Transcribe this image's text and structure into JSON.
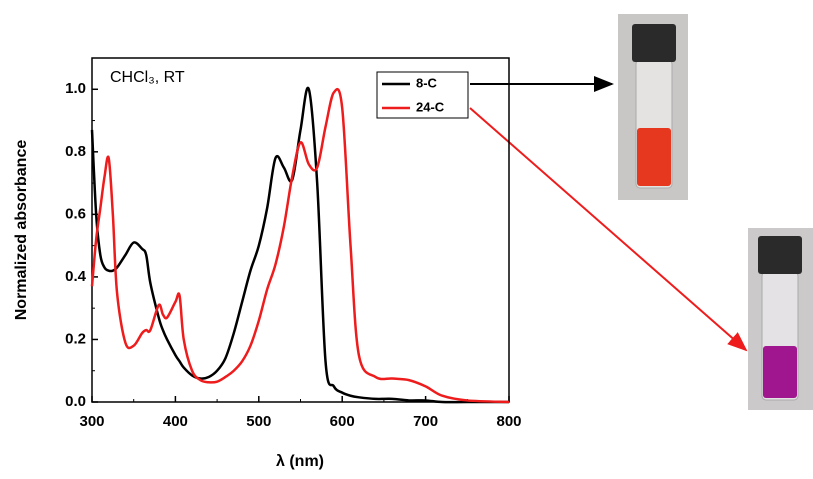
{
  "chart_data": {
    "type": "line",
    "annotation": "CHCl₃, RT",
    "x_label": "λ (nm)",
    "y_label": "Normalized absorbance",
    "xlim": [
      300,
      800
    ],
    "xticks": [
      300,
      400,
      500,
      600,
      700,
      800
    ],
    "ylim": [
      0,
      1.1
    ],
    "yticks": [
      {
        "value": 0,
        "label": "0.0"
      },
      {
        "value": 0.2,
        "label": "0.2"
      },
      {
        "value": 0.4,
        "label": "0.4"
      },
      {
        "value": 0.6,
        "label": "0.6"
      },
      {
        "value": 0.8,
        "label": "0.8"
      },
      {
        "value": 1.0,
        "label": "1.0"
      }
    ],
    "x": [
      300,
      305,
      310,
      315,
      320,
      325,
      330,
      340,
      350,
      360,
      365,
      370,
      380,
      385,
      390,
      400,
      405,
      410,
      420,
      430,
      440,
      450,
      460,
      470,
      480,
      490,
      500,
      510,
      520,
      530,
      540,
      550,
      560,
      570,
      580,
      590,
      600,
      610,
      620,
      640,
      660,
      680,
      700,
      720,
      750,
      800
    ],
    "series": [
      {
        "name": "8-C",
        "color": "#000000",
        "values": [
          0.87,
          0.6,
          0.47,
          0.43,
          0.42,
          0.42,
          0.43,
          0.47,
          0.51,
          0.49,
          0.47,
          0.38,
          0.27,
          0.23,
          0.2,
          0.15,
          0.13,
          0.11,
          0.085,
          0.075,
          0.08,
          0.1,
          0.14,
          0.22,
          0.32,
          0.42,
          0.5,
          0.62,
          0.78,
          0.75,
          0.71,
          0.87,
          1.0,
          0.7,
          0.13,
          0.05,
          0.03,
          0.02,
          0.015,
          0.01,
          0.01,
          0.005,
          0.005,
          0,
          0,
          0
        ]
      },
      {
        "name": "24-C",
        "color": "#ee1c1c",
        "values": [
          0.37,
          0.52,
          0.62,
          0.72,
          0.78,
          0.6,
          0.35,
          0.19,
          0.18,
          0.22,
          0.23,
          0.23,
          0.31,
          0.28,
          0.27,
          0.32,
          0.34,
          0.2,
          0.1,
          0.07,
          0.063,
          0.065,
          0.08,
          0.1,
          0.13,
          0.18,
          0.26,
          0.36,
          0.44,
          0.56,
          0.72,
          0.83,
          0.76,
          0.75,
          0.88,
          0.99,
          0.94,
          0.5,
          0.15,
          0.08,
          0.075,
          0.07,
          0.05,
          0.02,
          0.005,
          0
        ]
      }
    ]
  }
}
